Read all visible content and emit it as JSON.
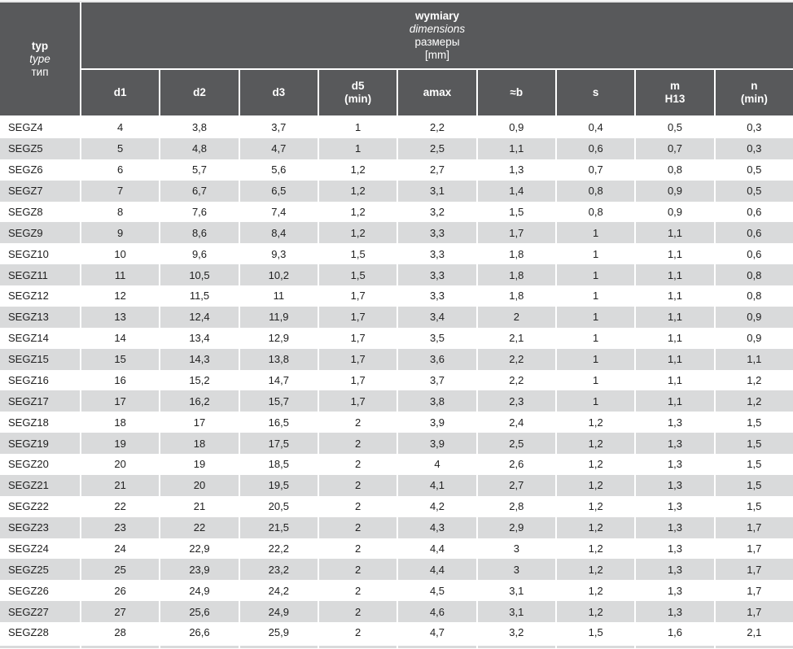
{
  "table": {
    "corner_header": [
      "typ",
      "type",
      "тип"
    ],
    "group_header": [
      "wymiary",
      "dimensions",
      "размеры",
      "[mm]"
    ],
    "columns": [
      {
        "key": "d1",
        "lines": [
          "d1"
        ]
      },
      {
        "key": "d2",
        "lines": [
          "d2"
        ]
      },
      {
        "key": "d3",
        "lines": [
          "d3"
        ]
      },
      {
        "key": "d5-min",
        "lines": [
          "d5",
          "(min)"
        ]
      },
      {
        "key": "amax",
        "lines": [
          "amax"
        ]
      },
      {
        "key": "approx-b",
        "lines": [
          "≈b"
        ]
      },
      {
        "key": "s",
        "lines": [
          "s"
        ]
      },
      {
        "key": "m-h13",
        "lines": [
          "m",
          "H13"
        ]
      },
      {
        "key": "n-min",
        "lines": [
          "n",
          "(min)"
        ]
      }
    ],
    "rows": [
      {
        "type": "SEGZ4",
        "values": [
          "4",
          "3,8",
          "3,7",
          "1",
          "2,2",
          "0,9",
          "0,4",
          "0,5",
          "0,3"
        ]
      },
      {
        "type": "SEGZ5",
        "values": [
          "5",
          "4,8",
          "4,7",
          "1",
          "2,5",
          "1,1",
          "0,6",
          "0,7",
          "0,3"
        ]
      },
      {
        "type": "SEGZ6",
        "values": [
          "6",
          "5,7",
          "5,6",
          "1,2",
          "2,7",
          "1,3",
          "0,7",
          "0,8",
          "0,5"
        ]
      },
      {
        "type": "SEGZ7",
        "values": [
          "7",
          "6,7",
          "6,5",
          "1,2",
          "3,1",
          "1,4",
          "0,8",
          "0,9",
          "0,5"
        ]
      },
      {
        "type": "SEGZ8",
        "values": [
          "8",
          "7,6",
          "7,4",
          "1,2",
          "3,2",
          "1,5",
          "0,8",
          "0,9",
          "0,6"
        ]
      },
      {
        "type": "SEGZ9",
        "values": [
          "9",
          "8,6",
          "8,4",
          "1,2",
          "3,3",
          "1,7",
          "1",
          "1,1",
          "0,6"
        ]
      },
      {
        "type": "SEGZ10",
        "values": [
          "10",
          "9,6",
          "9,3",
          "1,5",
          "3,3",
          "1,8",
          "1",
          "1,1",
          "0,6"
        ]
      },
      {
        "type": "SEGZ11",
        "values": [
          "11",
          "10,5",
          "10,2",
          "1,5",
          "3,3",
          "1,8",
          "1",
          "1,1",
          "0,8"
        ]
      },
      {
        "type": "SEGZ12",
        "values": [
          "12",
          "11,5",
          "11",
          "1,7",
          "3,3",
          "1,8",
          "1",
          "1,1",
          "0,8"
        ]
      },
      {
        "type": "SEGZ13",
        "values": [
          "13",
          "12,4",
          "11,9",
          "1,7",
          "3,4",
          "2",
          "1",
          "1,1",
          "0,9"
        ]
      },
      {
        "type": "SEGZ14",
        "values": [
          "14",
          "13,4",
          "12,9",
          "1,7",
          "3,5",
          "2,1",
          "1",
          "1,1",
          "0,9"
        ]
      },
      {
        "type": "SEGZ15",
        "values": [
          "15",
          "14,3",
          "13,8",
          "1,7",
          "3,6",
          "2,2",
          "1",
          "1,1",
          "1,1"
        ]
      },
      {
        "type": "SEGZ16",
        "values": [
          "16",
          "15,2",
          "14,7",
          "1,7",
          "3,7",
          "2,2",
          "1",
          "1,1",
          "1,2"
        ]
      },
      {
        "type": "SEGZ17",
        "values": [
          "17",
          "16,2",
          "15,7",
          "1,7",
          "3,8",
          "2,3",
          "1",
          "1,1",
          "1,2"
        ]
      },
      {
        "type": "SEGZ18",
        "values": [
          "18",
          "17",
          "16,5",
          "2",
          "3,9",
          "2,4",
          "1,2",
          "1,3",
          "1,5"
        ]
      },
      {
        "type": "SEGZ19",
        "values": [
          "19",
          "18",
          "17,5",
          "2",
          "3,9",
          "2,5",
          "1,2",
          "1,3",
          "1,5"
        ]
      },
      {
        "type": "SEGZ20",
        "values": [
          "20",
          "19",
          "18,5",
          "2",
          "4",
          "2,6",
          "1,2",
          "1,3",
          "1,5"
        ]
      },
      {
        "type": "SEGZ21",
        "values": [
          "21",
          "20",
          "19,5",
          "2",
          "4,1",
          "2,7",
          "1,2",
          "1,3",
          "1,5"
        ]
      },
      {
        "type": "SEGZ22",
        "values": [
          "22",
          "21",
          "20,5",
          "2",
          "4,2",
          "2,8",
          "1,2",
          "1,3",
          "1,5"
        ]
      },
      {
        "type": "SEGZ23",
        "values": [
          "23",
          "22",
          "21,5",
          "2",
          "4,3",
          "2,9",
          "1,2",
          "1,3",
          "1,7"
        ]
      },
      {
        "type": "SEGZ24",
        "values": [
          "24",
          "22,9",
          "22,2",
          "2",
          "4,4",
          "3",
          "1,2",
          "1,3",
          "1,7"
        ]
      },
      {
        "type": "SEGZ25",
        "values": [
          "25",
          "23,9",
          "23,2",
          "2",
          "4,4",
          "3",
          "1,2",
          "1,3",
          "1,7"
        ]
      },
      {
        "type": "SEGZ26",
        "values": [
          "26",
          "24,9",
          "24,2",
          "2",
          "4,5",
          "3,1",
          "1,2",
          "1,3",
          "1,7"
        ]
      },
      {
        "type": "SEGZ27",
        "values": [
          "27",
          "25,6",
          "24,9",
          "2",
          "4,6",
          "3,1",
          "1,2",
          "1,3",
          "1,7"
        ]
      },
      {
        "type": "SEGZ28",
        "values": [
          "28",
          "26,6",
          "25,9",
          "2",
          "4,7",
          "3,2",
          "1,5",
          "1,6",
          "2,1"
        ]
      }
    ],
    "colors": {
      "header_bg": "#58595b",
      "header_text": "#ffffff",
      "row_alt_bg": "#d9dadb",
      "row_bg": "#ffffff",
      "cell_text": "#212121"
    }
  }
}
